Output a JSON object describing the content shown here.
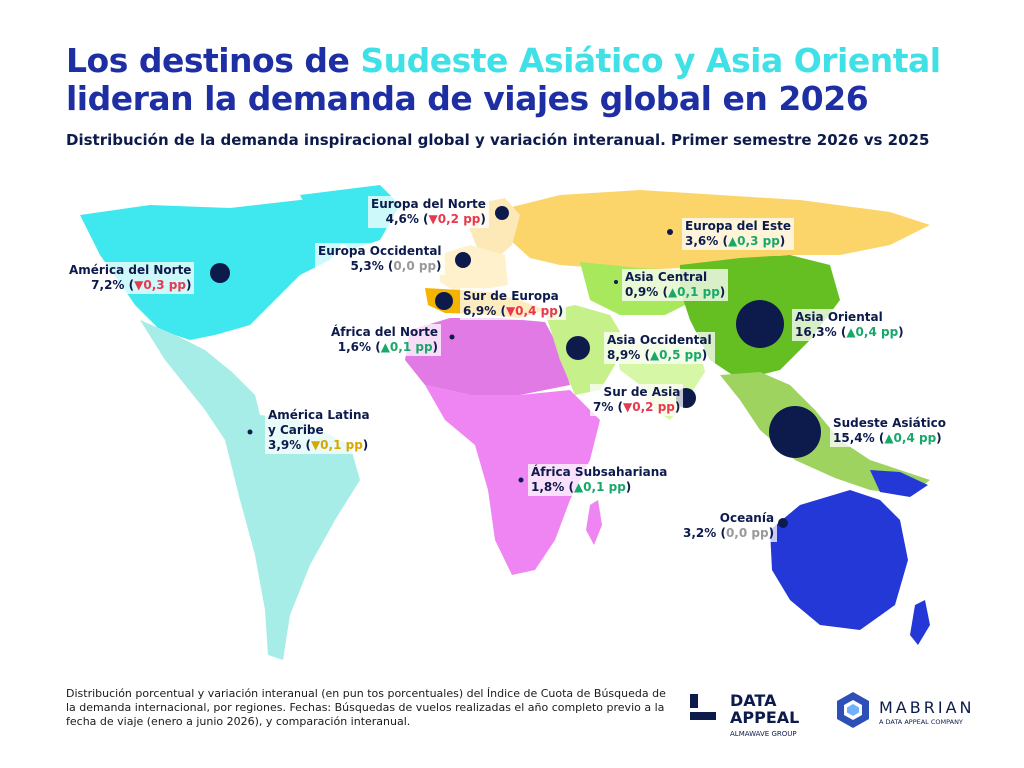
{
  "title": {
    "line1_pre": "Los destinos de ",
    "line1_highlight": "Sudeste Asiático y Asia Oriental",
    "line2": "lideran la demanda de viajes global en 2026"
  },
  "subtitle": "Distribución de la demanda inspiracional global y variación interanual. Primer semestre 2026 vs 2025",
  "regions": [
    {
      "id": "america-norte",
      "name": "América del Norte",
      "share": "7,2%",
      "delta": "▼0,3 pp",
      "trend": "down",
      "share_value": 7.2,
      "delta_value": -0.3
    },
    {
      "id": "america-latina",
      "name": "América Latina y Caribe",
      "name_lines": [
        "América Latina",
        "y Caribe"
      ],
      "share": "3,9%",
      "delta": "▼0,1 pp",
      "trend": "warn",
      "share_value": 3.9,
      "delta_value": -0.1
    },
    {
      "id": "europa-norte",
      "name": "Europa del Norte",
      "share": "4,6%",
      "delta": "▼0,2 pp",
      "trend": "down",
      "share_value": 4.6,
      "delta_value": -0.2
    },
    {
      "id": "europa-occidental",
      "name": "Europa Occidental",
      "share": "5,3%",
      "delta": "0,0 pp",
      "trend": "neutral",
      "share_value": 5.3,
      "delta_value": 0.0
    },
    {
      "id": "europa-este",
      "name": "Europa del Este",
      "share": "3,6%",
      "delta": "▲0,3 pp",
      "trend": "up",
      "share_value": 3.6,
      "delta_value": 0.3
    },
    {
      "id": "sur-europa",
      "name": "Sur de Europa",
      "share": "6,9%",
      "delta": "▼0,4 pp",
      "trend": "down",
      "share_value": 6.9,
      "delta_value": -0.4
    },
    {
      "id": "africa-norte",
      "name": "África del Norte",
      "share": "1,6%",
      "delta": "▲0,1 pp",
      "trend": "up",
      "share_value": 1.6,
      "delta_value": 0.1
    },
    {
      "id": "asia-central",
      "name": "Asia Central",
      "share": "0,9%",
      "delta": "▲0,1 pp",
      "trend": "up",
      "share_value": 0.9,
      "delta_value": 0.1
    },
    {
      "id": "asia-occidental",
      "name": "Asia Occidental",
      "share": "8,9%",
      "delta": "▲0,5 pp",
      "trend": "up",
      "share_value": 8.9,
      "delta_value": 0.5
    },
    {
      "id": "asia-oriental",
      "name": "Asia Oriental",
      "share": "16,3%",
      "delta": "▲0,4 pp",
      "trend": "up",
      "share_value": 16.3,
      "delta_value": 0.4
    },
    {
      "id": "sur-asia",
      "name": "Sur de Asia",
      "share": "7%",
      "delta": "▼0,2 pp",
      "trend": "down",
      "share_value": 7.0,
      "delta_value": -0.2
    },
    {
      "id": "sudeste-asiatico",
      "name": "Sudeste Asiático",
      "share": "15,4%",
      "delta": "▲0,4 pp",
      "trend": "up",
      "share_value": 15.4,
      "delta_value": 0.4
    },
    {
      "id": "africa-subsahariana",
      "name": "África Subsahariana",
      "share": "1,8%",
      "delta": "▲0,1 pp",
      "trend": "up",
      "share_value": 1.8,
      "delta_value": 0.1
    },
    {
      "id": "oceania",
      "name": "Oceanía",
      "share": "3,2%",
      "delta": "0,0 pp",
      "trend": "neutral",
      "share_value": 3.2,
      "delta_value": 0.0
    }
  ],
  "colors": {
    "north_america": "#3fe8ee",
    "latin_america": "#a6ede8",
    "europe_north": "#fde9b8",
    "europe_west": "#fff1cc",
    "europe_east": "#fbd46a",
    "south_europe": "#f5b400",
    "africa_north": "#e27ae6",
    "africa_sub": "#ef85f2",
    "west_asia": "#c6f08a",
    "central_asia": "#a7e85c",
    "east_asia": "#66bf22",
    "south_asia": "#d6f7a6",
    "southeast_asia": "#9fd35f",
    "oceania": "#2438d8",
    "bubble": "#0d1b4c",
    "title": "#1e2fa3",
    "title_highlight": "#3fe0e6"
  },
  "footnote": "Distribución porcentual y variación interanual (en pun tos porcentuales) del Índice de Cuota de Búsqueda de la demanda internacional, por regiones. Fechas: Búsquedas de vuelos realizadas el año completo previo a la fecha de viaje (enero a junio 2026), y comparación interanual.",
  "logos": {
    "dataappeal_name": "DATA APPEAL",
    "dataappeal_sub": "ALMAWAVE GROUP",
    "mabrian_name": "MABRIAN",
    "mabrian_sub": "A DATA APPEAL COMPANY"
  }
}
